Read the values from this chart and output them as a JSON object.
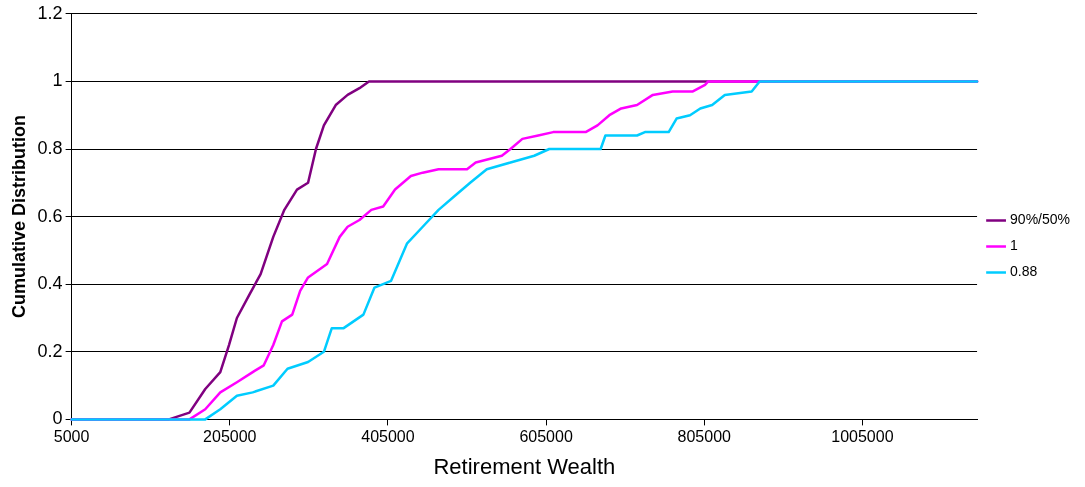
{
  "chart_data": {
    "type": "line",
    "xlabel": "Retirement Wealth",
    "ylabel": "Cumulative Distribution",
    "xlim": [
      5000,
      1150000
    ],
    "xticks": [
      5000,
      205000,
      405000,
      605000,
      805000,
      1005000
    ],
    "ylim": [
      0,
      1.2
    ],
    "yticks": [
      0,
      0.2,
      0.4,
      0.6,
      0.8,
      1,
      1.2
    ],
    "grid": "y",
    "legend": "right",
    "marker": "none",
    "line_style": "solid",
    "series": [
      {
        "name": "90%/50%",
        "color": "#800080",
        "x": [
          5000,
          128000,
          154000,
          174000,
          193000,
          204000,
          214000,
          230000,
          244000,
          260000,
          274000,
          290000,
          304000,
          314000,
          324000,
          339000,
          354000,
          369000,
          381000,
          1150000
        ],
        "values": [
          0,
          0,
          0.02,
          0.09,
          0.14,
          0.22,
          0.3,
          0.37,
          0.43,
          0.54,
          0.62,
          0.68,
          0.7,
          0.8,
          0.87,
          0.93,
          0.96,
          0.98,
          1,
          1
        ]
      },
      {
        "name": "1",
        "color": "#ff00ff",
        "x": [
          5000,
          154000,
          174000,
          193000,
          214000,
          234000,
          248000,
          260000,
          271000,
          284000,
          294000,
          304000,
          328000,
          344000,
          354000,
          369000,
          384000,
          399000,
          414000,
          434000,
          449000,
          469000,
          505000,
          516000,
          549000,
          560000,
          575000,
          595000,
          614000,
          655000,
          670000,
          685000,
          700000,
          720000,
          740000,
          765000,
          790000,
          806000,
          810000,
          1150000
        ],
        "values": [
          0,
          0,
          0.03,
          0.08,
          0.11,
          0.14,
          0.16,
          0.22,
          0.29,
          0.31,
          0.38,
          0.42,
          0.46,
          0.54,
          0.57,
          0.59,
          0.62,
          0.63,
          0.68,
          0.72,
          0.73,
          0.74,
          0.74,
          0.76,
          0.78,
          0.8,
          0.83,
          0.84,
          0.85,
          0.85,
          0.87,
          0.9,
          0.92,
          0.93,
          0.96,
          0.97,
          0.97,
          0.99,
          1,
          1
        ]
      },
      {
        "name": "0.88",
        "color": "#00ccff",
        "x": [
          5000,
          174000,
          193000,
          214000,
          234000,
          260000,
          278000,
          304000,
          324000,
          334000,
          349000,
          374000,
          388000,
          409000,
          429000,
          449000,
          469000,
          489000,
          509000,
          530000,
          560000,
          590000,
          609000,
          674000,
          680000,
          720000,
          730000,
          760000,
          770000,
          787000,
          800000,
          815000,
          831000,
          865000,
          875000,
          1150000
        ],
        "values": [
          0,
          0,
          0.03,
          0.07,
          0.08,
          0.1,
          0.15,
          0.17,
          0.2,
          0.27,
          0.27,
          0.31,
          0.39,
          0.41,
          0.52,
          0.57,
          0.62,
          0.66,
          0.7,
          0.74,
          0.76,
          0.78,
          0.8,
          0.8,
          0.84,
          0.84,
          0.85,
          0.85,
          0.89,
          0.9,
          0.92,
          0.93,
          0.96,
          0.97,
          1,
          1
        ]
      }
    ]
  }
}
